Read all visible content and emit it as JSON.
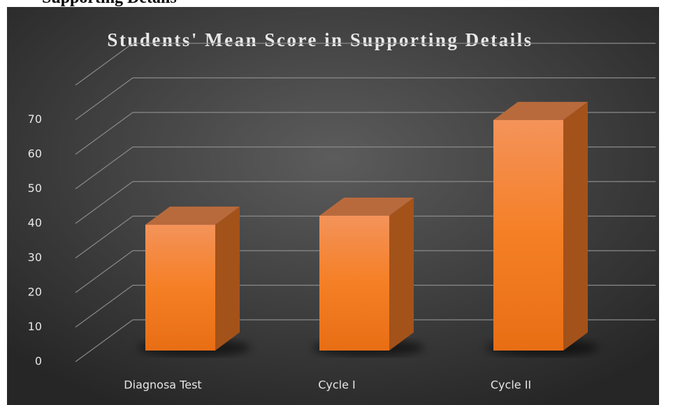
{
  "header": {
    "text": "Supporting Details"
  },
  "chart_data": {
    "type": "bar3d",
    "title": "Students' Mean Score in Supporting Details",
    "categories": [
      "Diagnosa Test",
      "Cycle I",
      "Cycle II"
    ],
    "values": [
      36.4,
      39,
      66.7
    ],
    "color": "#f5822a",
    "ylim": [
      0,
      80
    ],
    "yticks": [
      0,
      10,
      20,
      30,
      40,
      50,
      60,
      70
    ],
    "grid": true
  }
}
